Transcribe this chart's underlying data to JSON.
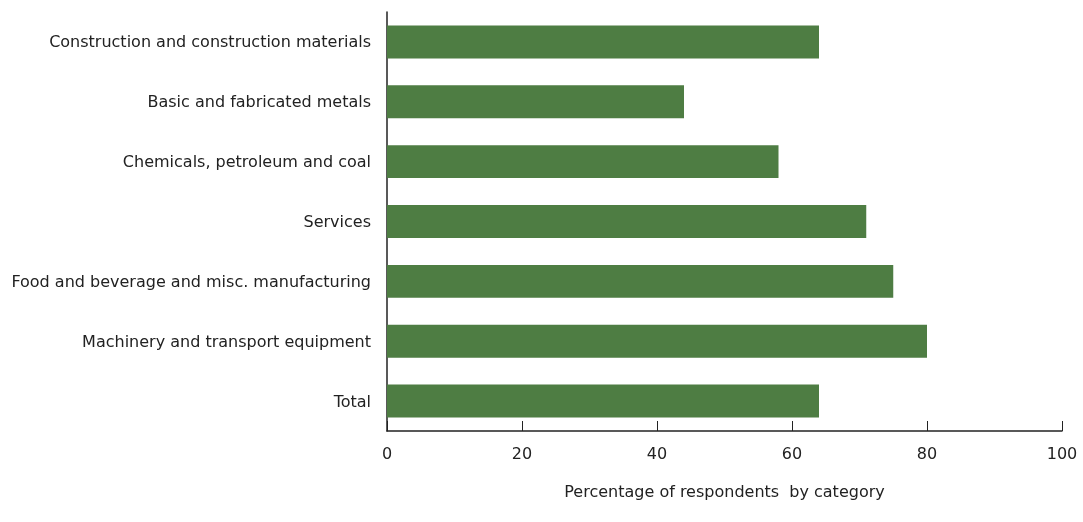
{
  "chart_data": {
    "type": "bar",
    "orientation": "horizontal",
    "xlabel": "Percentage of respondents  by category",
    "categories": [
      "Construction and construction materials",
      "Basic and fabricated metals",
      "Chemicals, petroleum and coal",
      "Services",
      "Food and beverage and misc. manufacturing",
      "Machinery and transport equipment",
      "Total"
    ],
    "values": [
      64,
      44,
      58,
      71,
      75,
      80,
      64
    ],
    "color": "#4e7d43",
    "xlim": [
      0,
      100
    ],
    "xticks": [
      0,
      20,
      40,
      60,
      80,
      100
    ],
    "grid": false
  }
}
